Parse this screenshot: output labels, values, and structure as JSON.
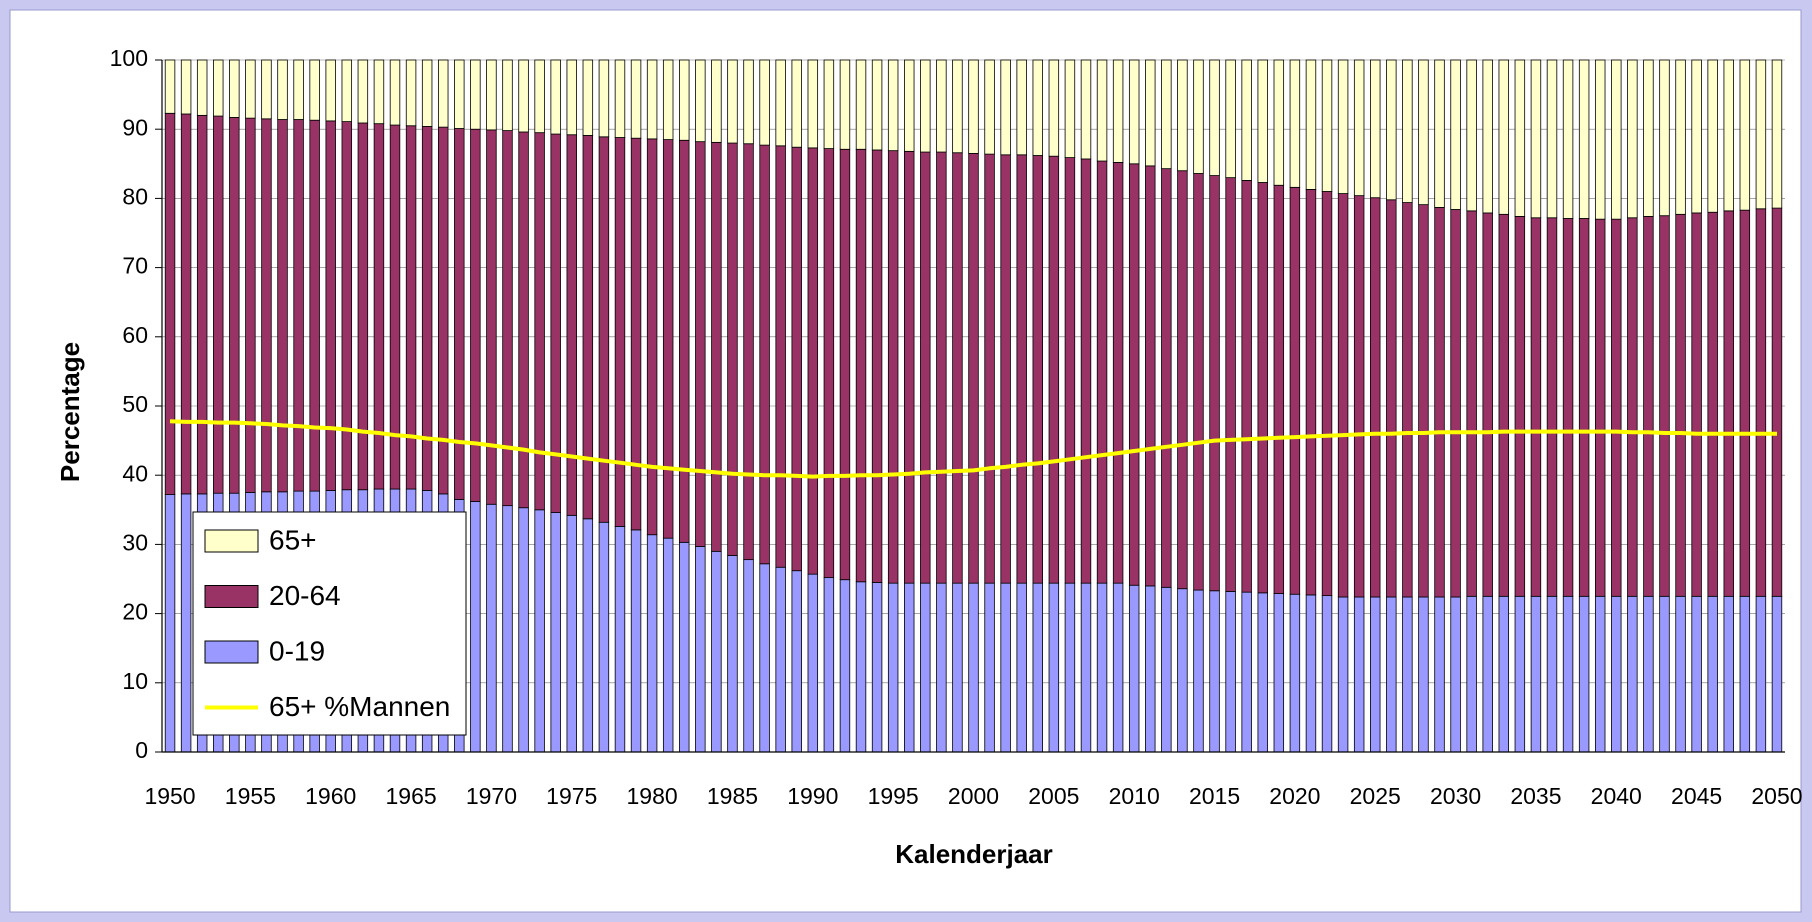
{
  "chart_data": {
    "type": "bar",
    "stacked": true,
    "x_label": "Kalenderjaar",
    "y_label": "Percentage",
    "categories": [
      "1950",
      null,
      null,
      null,
      null,
      "1955",
      null,
      null,
      null,
      null,
      "1960",
      null,
      null,
      null,
      null,
      "1965",
      null,
      null,
      null,
      null,
      "1970",
      null,
      null,
      null,
      null,
      "1975",
      null,
      null,
      null,
      null,
      "1980",
      null,
      null,
      null,
      null,
      "1985",
      null,
      null,
      null,
      null,
      "1990",
      null,
      null,
      null,
      null,
      "1995",
      null,
      null,
      null,
      null,
      "2000",
      null,
      null,
      null,
      null,
      "2005",
      null,
      null,
      null,
      null,
      "2010",
      null,
      null,
      null,
      null,
      "2015",
      null,
      null,
      null,
      null,
      "2020",
      null,
      null,
      null,
      null,
      "2025",
      null,
      null,
      null,
      null,
      "2030",
      null,
      null,
      null,
      null,
      "2035",
      null,
      null,
      null,
      null,
      "2040",
      null,
      null,
      null,
      null,
      "2045",
      null,
      null,
      null,
      null,
      "2050"
    ],
    "series": [
      {
        "name": "0-19",
        "type": "bar",
        "color": "#9999ff",
        "values": [
          37.2,
          37.3,
          37.3,
          37.4,
          37.4,
          37.5,
          37.6,
          37.6,
          37.7,
          37.7,
          37.8,
          37.9,
          37.9,
          38.0,
          38.0,
          38.0,
          37.8,
          37.3,
          36.5,
          36.2,
          35.8,
          35.6,
          35.3,
          35.0,
          34.6,
          34.2,
          33.7,
          33.2,
          32.6,
          32.1,
          31.4,
          30.9,
          30.3,
          29.7,
          29.0,
          28.4,
          27.8,
          27.2,
          26.7,
          26.2,
          25.7,
          25.2,
          24.9,
          24.6,
          24.5,
          24.4,
          24.4,
          24.4,
          24.4,
          24.4,
          24.4,
          24.4,
          24.4,
          24.4,
          24.4,
          24.4,
          24.4,
          24.4,
          24.4,
          24.4,
          24.1,
          24.0,
          23.8,
          23.6,
          23.4,
          23.3,
          23.2,
          23.1,
          23.0,
          22.9,
          22.8,
          22.7,
          22.6,
          22.4,
          22.4,
          22.4,
          22.4,
          22.4,
          22.4,
          22.4,
          22.4,
          22.5,
          22.5,
          22.5,
          22.5,
          22.5,
          22.5,
          22.5,
          22.5,
          22.5,
          22.5,
          22.5,
          22.5,
          22.5,
          22.5,
          22.5,
          22.5,
          22.5,
          22.5,
          22.5,
          22.5
        ]
      },
      {
        "name": "20-64",
        "type": "bar",
        "color": "#993366",
        "values": [
          55.1,
          54.9,
          54.7,
          54.5,
          54.3,
          54.1,
          53.9,
          53.8,
          53.7,
          53.6,
          53.4,
          53.2,
          53.0,
          52.8,
          52.6,
          52.5,
          52.6,
          53.0,
          53.6,
          53.8,
          54.1,
          54.2,
          54.3,
          54.5,
          54.7,
          55.0,
          55.4,
          55.7,
          56.2,
          56.6,
          57.2,
          57.6,
          58.1,
          58.5,
          59.1,
          59.6,
          60.1,
          60.5,
          60.9,
          61.2,
          61.6,
          62.0,
          62.2,
          62.5,
          62.5,
          62.5,
          62.4,
          62.3,
          62.3,
          62.2,
          62.1,
          62.0,
          61.9,
          61.9,
          61.8,
          61.7,
          61.5,
          61.3,
          61.0,
          60.8,
          60.9,
          60.7,
          60.5,
          60.4,
          60.2,
          60.0,
          59.8,
          59.5,
          59.3,
          59.0,
          58.8,
          58.6,
          58.4,
          58.3,
          58.0,
          57.7,
          57.4,
          57.0,
          56.7,
          56.3,
          56.0,
          55.7,
          55.4,
          55.2,
          54.9,
          54.7,
          54.7,
          54.6,
          54.6,
          54.5,
          54.5,
          54.7,
          54.9,
          55.0,
          55.2,
          55.4,
          55.5,
          55.7,
          55.8,
          56.0,
          56.1
        ]
      },
      {
        "name": "65+",
        "type": "bar",
        "color": "#ffffcc",
        "values": [
          7.7,
          7.8,
          8.0,
          8.1,
          8.3,
          8.4,
          8.5,
          8.6,
          8.6,
          8.7,
          8.8,
          8.9,
          9.1,
          9.2,
          9.4,
          9.5,
          9.6,
          9.7,
          9.9,
          10.0,
          10.1,
          10.2,
          10.4,
          10.5,
          10.7,
          10.8,
          10.9,
          11.1,
          11.2,
          11.3,
          11.4,
          11.5,
          11.6,
          11.8,
          11.9,
          12.0,
          12.1,
          12.3,
          12.4,
          12.6,
          12.7,
          12.8,
          12.9,
          12.9,
          13.0,
          13.1,
          13.2,
          13.3,
          13.3,
          13.4,
          13.5,
          13.6,
          13.7,
          13.7,
          13.8,
          13.9,
          14.1,
          14.3,
          14.6,
          14.8,
          15.0,
          15.3,
          15.7,
          16.0,
          16.4,
          16.7,
          17.0,
          17.4,
          17.7,
          18.1,
          18.4,
          18.7,
          19.0,
          19.3,
          19.6,
          19.9,
          20.2,
          20.6,
          20.9,
          21.3,
          21.6,
          21.8,
          22.1,
          22.3,
          22.6,
          22.8,
          22.8,
          22.9,
          22.9,
          23.0,
          23.0,
          22.8,
          22.6,
          22.5,
          22.3,
          22.1,
          22.0,
          21.8,
          21.7,
          21.5,
          21.4
        ]
      },
      {
        "name": "65+ %Mannen",
        "type": "line",
        "color": "#ffff00",
        "values": [
          47.8,
          47.7,
          47.7,
          47.6,
          47.6,
          47.5,
          47.4,
          47.2,
          47.1,
          46.9,
          46.8,
          46.6,
          46.3,
          46.1,
          45.8,
          45.6,
          45.3,
          45.1,
          44.8,
          44.6,
          44.3,
          44.0,
          43.7,
          43.3,
          43.0,
          42.7,
          42.4,
          42.1,
          41.8,
          41.5,
          41.2,
          41.0,
          40.8,
          40.6,
          40.4,
          40.2,
          40.1,
          40.0,
          40.0,
          39.9,
          39.8,
          39.9,
          39.9,
          40.0,
          40.0,
          40.1,
          40.2,
          40.4,
          40.5,
          40.6,
          40.7,
          41.0,
          41.2,
          41.5,
          41.7,
          42.0,
          42.3,
          42.6,
          42.9,
          43.2,
          43.5,
          43.8,
          44.1,
          44.4,
          44.7,
          45.0,
          45.1,
          45.2,
          45.3,
          45.4,
          45.5,
          45.6,
          45.7,
          45.8,
          45.9,
          46.0,
          46.0,
          46.1,
          46.1,
          46.2,
          46.2,
          46.2,
          46.2,
          46.3,
          46.3,
          46.3,
          46.3,
          46.3,
          46.3,
          46.3,
          46.3,
          46.2,
          46.2,
          46.1,
          46.1,
          46.0,
          46.0,
          46.0,
          46.0,
          46.0,
          46.0
        ]
      }
    ],
    "ylim": [
      0,
      100
    ],
    "yticks": [
      0,
      10,
      20,
      30,
      40,
      50,
      60,
      70,
      80,
      90,
      100
    ],
    "grid": true,
    "legend": "lower left"
  }
}
